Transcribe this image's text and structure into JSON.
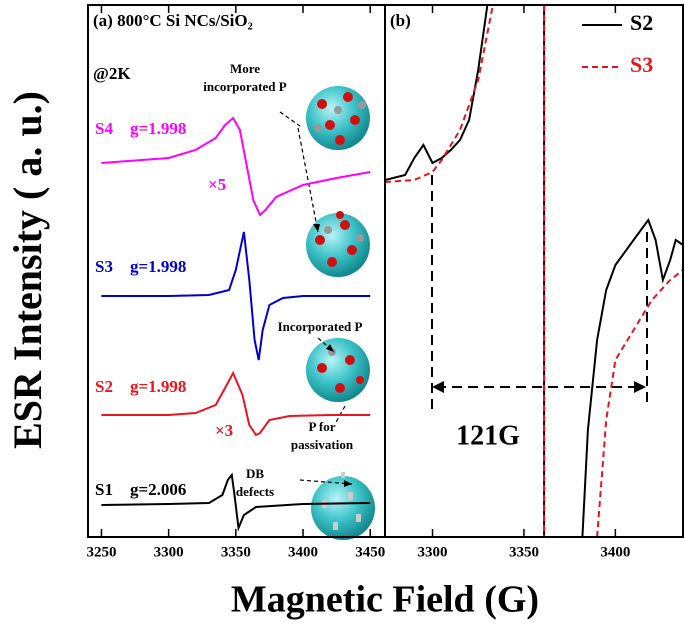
{
  "chart_data": [
    {
      "type": "line",
      "title": "(a) 800°C  Si NCs/SiO₂",
      "xlabel": "Magnetic Field (G)",
      "ylabel": "ESR Intensity ( a. u.)",
      "xlim": [
        3240,
        3461
      ],
      "xticks": [
        3250,
        3300,
        3350,
        3400,
        3450
      ],
      "ylim": [
        0,
        532
      ],
      "annotations": [
        [
          "@2K"
        ],
        [
          "More",
          "incorporated P"
        ],
        [
          "×5"
        ],
        [
          "×3"
        ],
        [
          "Incorporated P"
        ],
        [
          "P for",
          "passivation"
        ],
        [
          "DB",
          "defects"
        ]
      ],
      "series": [
        {
          "name": "S4",
          "g_label": "g=1.998",
          "color": "#ff00ff",
          "x": [
            3250,
            3280,
            3300,
            3320,
            3335,
            3342,
            3348,
            3353,
            3358,
            3363,
            3368,
            3372,
            3380,
            3400,
            3425,
            3450
          ],
          "values": [
            374,
            377,
            379,
            387,
            399,
            412,
            419,
            407,
            372,
            337,
            322,
            327,
            340,
            352,
            359,
            365
          ]
        },
        {
          "name": "S3",
          "g_label": "g=1.998",
          "color": "#0000cc",
          "x": [
            3250,
            3300,
            3330,
            3345,
            3350,
            3356,
            3360,
            3364,
            3367,
            3370,
            3375,
            3385,
            3400,
            3450
          ],
          "values": [
            241,
            241,
            242,
            247,
            267,
            305,
            257,
            197,
            177,
            207,
            232,
            239,
            241,
            241
          ]
        },
        {
          "name": "S2",
          "g_label": "g=1.998",
          "color": "#e8141e",
          "x": [
            3250,
            3300,
            3320,
            3335,
            3342,
            3348,
            3355,
            3360,
            3365,
            3368,
            3375,
            3390,
            3420,
            3450
          ],
          "values": [
            122,
            122,
            124,
            132,
            149,
            164,
            142,
            112,
            102,
            104,
            117,
            121,
            122,
            122
          ]
        },
        {
          "name": "S1",
          "g_label": "g=2.006",
          "color": "#000000",
          "x": [
            3250,
            3300,
            3330,
            3340,
            3344,
            3347,
            3349,
            3352,
            3356,
            3365,
            3400,
            3450
          ],
          "values": [
            32,
            33,
            34,
            42,
            57,
            62,
            42,
            9,
            22,
            30,
            33,
            34
          ]
        }
      ]
    },
    {
      "type": "line",
      "title": "(b)",
      "annotations": [
        [
          "121G"
        ]
      ],
      "legend": "upper right",
      "xlim": [
        3274,
        3437
      ],
      "xticks": [
        3300,
        3350,
        3400
      ],
      "ylim": [
        0,
        532
      ],
      "series": [
        {
          "name": "S2",
          "color": "#000000",
          "dash": false,
          "x": [
            3274,
            3285,
            3290,
            3295,
            3300,
            3305,
            3310,
            3315,
            3320,
            3325,
            3330,
            3345,
            3361,
            3361,
            3375,
            3382,
            3385,
            3390,
            3395,
            3400,
            3410,
            3418,
            3422,
            3426,
            3430,
            3433,
            3437
          ],
          "values": [
            357,
            362,
            379,
            392,
            374,
            379,
            387,
            397,
            417,
            467,
            532,
            null,
            532,
            0,
            null,
            0,
            107,
            197,
            247,
            272,
            297,
            317,
            297,
            257,
            277,
            297,
            292
          ]
        },
        {
          "name": "S3",
          "color": "#e8141e",
          "dash": true,
          "x": [
            3274,
            3290,
            3300,
            3305,
            3315,
            3325,
            3333,
            3345,
            3361,
            3361,
            3375,
            3390,
            3395,
            3400,
            3410,
            3420,
            3430,
            3437
          ],
          "values": [
            355,
            357,
            365,
            377,
            407,
            457,
            532,
            null,
            532,
            0,
            null,
            0,
            117,
            177,
            207,
            237,
            257,
            267
          ]
        }
      ]
    }
  ]
}
